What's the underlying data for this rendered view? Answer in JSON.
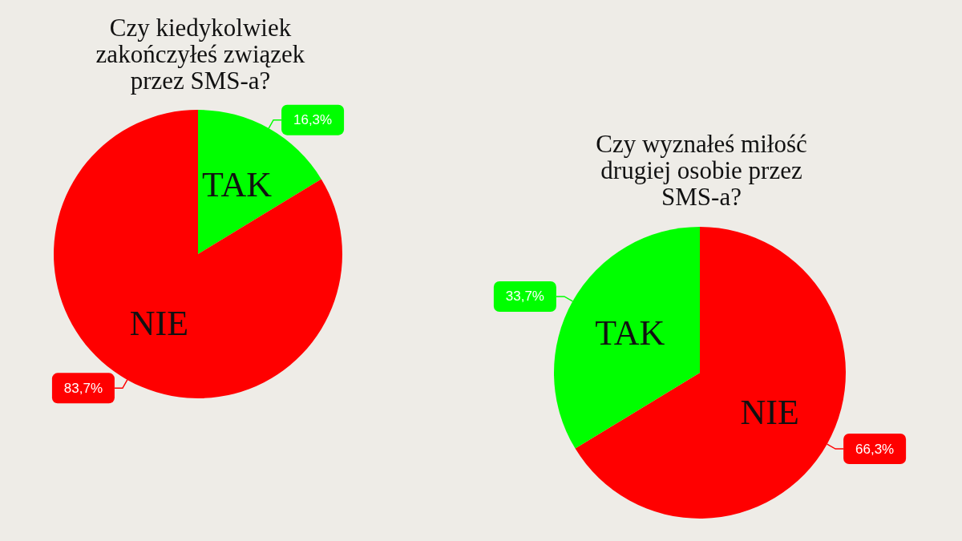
{
  "chart_data": [
    {
      "type": "pie",
      "title": "Czy kiedykolwiek zakończyłeś związek przez SMS-a?",
      "categories": [
        "TAK",
        "NIE"
      ],
      "values": [
        16.3,
        83.7
      ],
      "colors": [
        "#00ff00",
        "#ff0000"
      ],
      "value_labels": [
        "16,3%",
        "83,7%"
      ]
    },
    {
      "type": "pie",
      "title": "Czy wyznałeś miłość drugiej osobie przez SMS-a?",
      "categories": [
        "NIE",
        "TAK"
      ],
      "values": [
        66.3,
        33.7
      ],
      "colors": [
        "#ff0000",
        "#00ff00"
      ],
      "value_labels": [
        "66,3%",
        "33,7%"
      ]
    }
  ]
}
